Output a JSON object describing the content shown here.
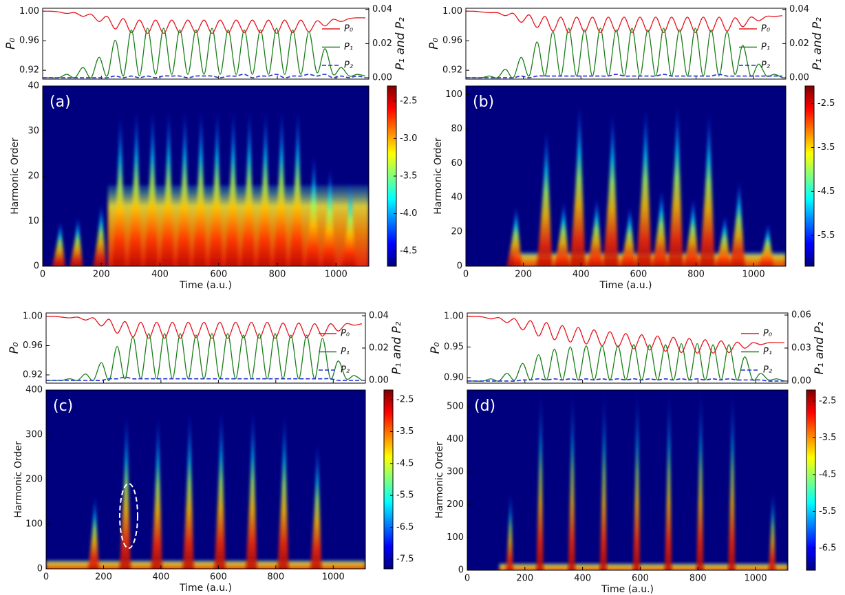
{
  "chart_data": [
    {
      "type": "line",
      "ylabel": "P₀",
      "y2label": "P₁ and P₂",
      "xlim": [
        0,
        1112
      ],
      "xticks": [
        0,
        200,
        400,
        600,
        800,
        1000
      ],
      "ylim": [
        0.908,
        1.004
      ],
      "yticks": [
        0.92,
        0.96,
        {
          "value": 1,
          "label": "1.00"
        }
      ],
      "y2lim": [
        -0.0008,
        0.0407
      ],
      "y2ticks": [
        {
          "value": 0,
          "label": "0.00"
        },
        0.02,
        0.04
      ],
      "legend": "upper right",
      "x": [
        0,
        27.5,
        55,
        82.5,
        110,
        137.5,
        165,
        192.5,
        220,
        247.5,
        275,
        302.5,
        330,
        357.5,
        385,
        412.5,
        440,
        467.5,
        495,
        522.5,
        550,
        577.5,
        605,
        632.5,
        660,
        687.5,
        715,
        742.5,
        770,
        797.5,
        825,
        852.5,
        880,
        907.5,
        935,
        962.5,
        990,
        1017.5,
        1045,
        1072.5,
        1100
      ],
      "series": [
        {
          "name": "P₀",
          "color": "#e8141c",
          "values": [
            1.0,
            1.0,
            0.999,
            0.997,
            0.998,
            0.993,
            0.996,
            0.986,
            0.993,
            0.976,
            0.99,
            0.971,
            0.988,
            0.97,
            0.988,
            0.97,
            0.988,
            0.971,
            0.988,
            0.971,
            0.988,
            0.97,
            0.988,
            0.971,
            0.988,
            0.971,
            0.988,
            0.971,
            0.988,
            0.97,
            0.988,
            0.971,
            0.988,
            0.972,
            0.987,
            0.98,
            0.989,
            0.986,
            0.99,
            0.991,
            0.991
          ]
        },
        {
          "name": "P₁",
          "color": "#1a7f1a",
          "axis": "y2",
          "values": [
            0,
            0,
            0,
            0.002,
            0,
            0.006,
            0,
            0.012,
            0.001,
            0.022,
            0.001,
            0.028,
            0.001,
            0.029,
            0.002,
            0.029,
            0.002,
            0.028,
            0.002,
            0.028,
            0.002,
            0.029,
            0.002,
            0.028,
            0.002,
            0.028,
            0.002,
            0.028,
            0.002,
            0.029,
            0.002,
            0.028,
            0.002,
            0.027,
            0.003,
            0.017,
            0.002,
            0.006,
            0.001,
            0.002,
            0.001
          ]
        },
        {
          "name": "P₂",
          "color": "#1f2fd8",
          "axis": "y2",
          "dash": true,
          "values": [
            0,
            0,
            0,
            0,
            0,
            0,
            0,
            0,
            0,
            0.001,
            0,
            0.001,
            0,
            0.001,
            0,
            0.001,
            0.001,
            0.001,
            0,
            0.001,
            0.001,
            0.001,
            0,
            0.001,
            0.001,
            0.002,
            0,
            0.001,
            0.001,
            0.002,
            0,
            0.001,
            0.001,
            0.002,
            0.001,
            0.002,
            0,
            0.001,
            0,
            0.001,
            0
          ]
        }
      ]
    },
    {
      "type": "heatmap",
      "label": "(a)",
      "xlabel": "Time (a.u.)",
      "ylabel": "Harmonic Order",
      "xlim": [
        0,
        1112
      ],
      "xticks": [
        0,
        200,
        400,
        600,
        800,
        1000
      ],
      "ylim": [
        0,
        40
      ],
      "yticks": [
        0,
        10,
        20,
        30,
        40
      ],
      "colormap": "jet",
      "clim": [
        -4.7,
        -2.3
      ],
      "cticks": [
        -2.5,
        {
          "value": -3,
          "label": "-3.0"
        },
        -3.5,
        {
          "value": -4,
          "label": "-4.0"
        },
        -4.5
      ],
      "bursts": {
        "x": [
          60,
          120,
          200,
          265,
          320,
          375,
          430,
          485,
          540,
          595,
          650,
          705,
          760,
          815,
          870,
          925,
          980,
          1050
        ],
        "values": [
          10,
          11,
          14,
          34,
          35,
          35,
          35,
          35,
          35,
          35,
          35,
          35,
          35,
          35,
          35,
          25,
          22,
          19
        ]
      }
    },
    {
      "type": "line",
      "ylabel": "P₀",
      "y2label": "P₁ and P₂",
      "xlim": [
        0,
        1112
      ],
      "xticks": [
        0,
        200,
        400,
        600,
        800,
        1000
      ],
      "ylim": [
        0.908,
        1.004
      ],
      "yticks": [
        0.92,
        0.96,
        {
          "value": 1,
          "label": "1.00"
        }
      ],
      "y2lim": [
        -0.0008,
        0.0407
      ],
      "y2ticks": [
        {
          "value": 0,
          "label": "0.00"
        },
        0.02,
        0.04
      ],
      "legend": "upper right",
      "x": [
        0,
        27.5,
        55,
        82.5,
        110,
        137.5,
        165,
        192.5,
        220,
        247.5,
        275,
        302.5,
        330,
        357.5,
        385,
        412.5,
        440,
        467.5,
        495,
        522.5,
        550,
        577.5,
        605,
        632.5,
        660,
        687.5,
        715,
        742.5,
        770,
        797.5,
        825,
        852.5,
        880,
        907.5,
        935,
        962.5,
        990,
        1017.5,
        1045,
        1072.5,
        1100
      ],
      "series": [
        {
          "name": "P₀",
          "color": "#e8141c",
          "values": [
            1.0,
            1.0,
            0.999,
            0.998,
            0.998,
            0.994,
            0.997,
            0.985,
            0.995,
            0.978,
            0.993,
            0.973,
            0.992,
            0.971,
            0.992,
            0.972,
            0.992,
            0.971,
            0.992,
            0.972,
            0.992,
            0.971,
            0.992,
            0.972,
            0.992,
            0.971,
            0.992,
            0.972,
            0.992,
            0.971,
            0.992,
            0.972,
            0.992,
            0.973,
            0.991,
            0.979,
            0.992,
            0.987,
            0.993,
            0.993,
            0.994
          ]
        },
        {
          "name": "P₁",
          "color": "#1a7f1a",
          "axis": "y2",
          "values": [
            0,
            0,
            0,
            0.001,
            0,
            0.005,
            0,
            0.012,
            0.001,
            0.021,
            0.001,
            0.027,
            0.001,
            0.029,
            0.001,
            0.028,
            0.001,
            0.029,
            0.001,
            0.028,
            0.001,
            0.029,
            0.001,
            0.028,
            0.001,
            0.029,
            0.001,
            0.028,
            0.001,
            0.029,
            0.001,
            0.028,
            0.001,
            0.027,
            0.002,
            0.019,
            0.001,
            0.008,
            0.001,
            0.002,
            0
          ]
        },
        {
          "name": "P₂",
          "color": "#1f2fd8",
          "axis": "y2",
          "dash": true,
          "values": [
            0,
            0,
            0,
            0,
            0,
            0,
            0,
            0.001,
            0,
            0.001,
            0.001,
            0.001,
            0.001,
            0.001,
            0.001,
            0.001,
            0.001,
            0.001,
            0.001,
            0.002,
            0.001,
            0.001,
            0.001,
            0.001,
            0.001,
            0.002,
            0.001,
            0.001,
            0.001,
            0.001,
            0.001,
            0.001,
            0.002,
            0.001,
            0.001,
            0.001,
            0.001,
            0.001,
            0.001,
            0.001,
            0.001
          ]
        }
      ]
    },
    {
      "type": "heatmap",
      "label": "(b)",
      "xlabel": "Time (a.u.)",
      "ylabel": "Harmonic Order",
      "xlim": [
        0,
        1112
      ],
      "xticks": [
        0,
        200,
        400,
        600,
        800,
        1000
      ],
      "ylim": [
        0,
        105
      ],
      "yticks": [
        0,
        20,
        40,
        60,
        80,
        100
      ],
      "colormap": "jet",
      "clim": [
        -6.2,
        -2.1
      ],
      "cticks": [
        -2.5,
        -3.5,
        -4.5,
        -5.5
      ],
      "bursts": {
        "x": [
          175,
          280,
          340,
          395,
          455,
          510,
          570,
          625,
          680,
          735,
          790,
          845,
          900,
          950,
          1050
        ],
        "values": [
          35,
          80,
          38,
          95,
          40,
          90,
          35,
          93,
          45,
          95,
          40,
          90,
          30,
          50,
          25
        ]
      }
    },
    {
      "type": "line",
      "ylabel": "P₀",
      "y2label": "P₁ and P₂",
      "xlim": [
        0,
        1112
      ],
      "xticks": [
        0,
        200,
        400,
        600,
        800,
        1000
      ],
      "ylim": [
        0.9087,
        1.0047
      ],
      "yticks": [
        0.92,
        0.96,
        {
          "value": 1,
          "label": "1.00"
        }
      ],
      "y2lim": [
        -0.0017,
        0.0417
      ],
      "y2ticks": [
        {
          "value": 0,
          "label": "0.00"
        },
        0.02,
        0.04
      ],
      "legend": "upper right",
      "x": [
        0,
        27.5,
        55,
        82.5,
        110,
        137.5,
        165,
        192.5,
        220,
        247.5,
        275,
        302.5,
        330,
        357.5,
        385,
        412.5,
        440,
        467.5,
        495,
        522.5,
        550,
        577.5,
        605,
        632.5,
        660,
        687.5,
        715,
        742.5,
        770,
        797.5,
        825,
        852.5,
        880,
        907.5,
        935,
        962.5,
        990,
        1017.5,
        1045,
        1072.5,
        1100
      ],
      "series": [
        {
          "name": "P₀",
          "color": "#e8141c",
          "values": [
            1.0,
            1.0,
            0.999,
            0.998,
            0.999,
            0.995,
            0.998,
            0.987,
            0.996,
            0.977,
            0.993,
            0.972,
            0.992,
            0.97,
            0.992,
            0.97,
            0.992,
            0.97,
            0.992,
            0.971,
            0.992,
            0.97,
            0.992,
            0.97,
            0.992,
            0.971,
            0.992,
            0.97,
            0.992,
            0.97,
            0.991,
            0.971,
            0.991,
            0.971,
            0.99,
            0.973,
            0.99,
            0.98,
            0.99,
            0.988,
            0.99
          ]
        },
        {
          "name": "P₁",
          "color": "#1a7f1a",
          "axis": "y2",
          "values": [
            0,
            0,
            0,
            0.001,
            0,
            0.004,
            0,
            0.011,
            0,
            0.021,
            0.001,
            0.027,
            0.001,
            0.029,
            0.001,
            0.029,
            0.001,
            0.029,
            0.001,
            0.028,
            0.001,
            0.029,
            0.001,
            0.029,
            0.001,
            0.028,
            0.001,
            0.029,
            0.001,
            0.029,
            0.001,
            0.028,
            0.001,
            0.028,
            0.001,
            0.026,
            0.001,
            0.012,
            0.001,
            0.003,
            0
          ]
        },
        {
          "name": "P₂",
          "color": "#1f2fd8",
          "axis": "y2",
          "dash": true,
          "values": [
            0,
            0,
            0,
            0,
            0,
            0,
            0,
            0,
            0.001,
            0.001,
            0.002,
            0.001,
            0.001,
            0.001,
            0.001,
            0.001,
            0.001,
            0.001,
            0.001,
            0.001,
            0.001,
            0.001,
            0.001,
            0.001,
            0.001,
            0.001,
            0.001,
            0.001,
            0.001,
            0.001,
            0.001,
            0.001,
            0.001,
            0.001,
            0.001,
            0.001,
            0.001,
            0,
            0,
            0,
            0
          ]
        }
      ]
    },
    {
      "type": "heatmap",
      "label": "(c)",
      "xlabel": "Time (a.u.)",
      "ylabel": "Harmonic Order",
      "xlim": [
        0,
        1112
      ],
      "xticks": [
        0,
        200,
        400,
        600,
        800,
        1000
      ],
      "ylim": [
        0,
        400
      ],
      "yticks": [
        0,
        100,
        200,
        300,
        400
      ],
      "colormap": "jet",
      "clim": [
        -7.8,
        -2.2
      ],
      "cticks": [
        -2.5,
        -3.5,
        -4.5,
        -5.5,
        -6.5,
        -7.5
      ],
      "bursts": {
        "x": [
          170,
          280,
          390,
          500,
          610,
          720,
          830,
          945
        ],
        "values": [
          165,
          350,
          345,
          355,
          360,
          360,
          350,
          285
        ]
      }
    },
    {
      "type": "line",
      "ylabel": "P₀",
      "y2label": "P₁ and P₂",
      "xlim": [
        0,
        1112
      ],
      "xticks": [
        0,
        200,
        400,
        600,
        800,
        1000
      ],
      "ylim": [
        0.891,
        1.0056
      ],
      "yticks": [
        {
          "value": 0.9,
          "label": "0.90"
        },
        0.95,
        {
          "value": 1,
          "label": "1.00"
        }
      ],
      "y2lim": [
        -0.0019,
        0.0619
      ],
      "y2ticks": [
        {
          "value": 0,
          "label": "0.00"
        },
        0.03,
        0.06
      ],
      "legend": "upper right",
      "x": [
        0,
        27.5,
        55,
        82.5,
        110,
        137.5,
        165,
        192.5,
        220,
        247.5,
        275,
        302.5,
        330,
        357.5,
        385,
        412.5,
        440,
        467.5,
        495,
        522.5,
        550,
        577.5,
        605,
        632.5,
        660,
        687.5,
        715,
        742.5,
        770,
        797.5,
        825,
        852.5,
        880,
        907.5,
        935,
        962.5,
        990,
        1017.5,
        1045,
        1072.5,
        1100
      ],
      "series": [
        {
          "name": "P₀",
          "color": "#e8141c",
          "values": [
            1.0,
            1.0,
            0.999,
            0.996,
            0.998,
            0.99,
            0.996,
            0.978,
            0.993,
            0.968,
            0.99,
            0.962,
            0.985,
            0.958,
            0.982,
            0.955,
            0.978,
            0.952,
            0.975,
            0.95,
            0.972,
            0.947,
            0.97,
            0.945,
            0.968,
            0.943,
            0.966,
            0.941,
            0.964,
            0.94,
            0.962,
            0.94,
            0.96,
            0.941,
            0.958,
            0.948,
            0.957,
            0.954,
            0.957,
            0.957,
            0.957
          ]
        },
        {
          "name": "P₁",
          "color": "#1a7f1a",
          "axis": "y2",
          "values": [
            0,
            0,
            0,
            0.002,
            0,
            0.007,
            0.001,
            0.016,
            0.001,
            0.024,
            0.001,
            0.029,
            0.001,
            0.031,
            0.001,
            0.032,
            0.001,
            0.032,
            0.001,
            0.032,
            0.001,
            0.033,
            0.001,
            0.033,
            0.001,
            0.033,
            0.001,
            0.034,
            0.001,
            0.034,
            0.001,
            0.033,
            0.001,
            0.033,
            0.001,
            0.022,
            0.001,
            0.007,
            0.001,
            0.002,
            0
          ]
        },
        {
          "name": "P₂",
          "color": "#1f2fd8",
          "axis": "y2",
          "dash": true,
          "values": [
            0,
            0,
            0,
            0,
            0,
            0,
            0,
            0.001,
            0.001,
            0.002,
            0.001,
            0.002,
            0.001,
            0.002,
            0.001,
            0.002,
            0.001,
            0.002,
            0.001,
            0.002,
            0.001,
            0.002,
            0.001,
            0.002,
            0.001,
            0.002,
            0.001,
            0.002,
            0.001,
            0.002,
            0.001,
            0.002,
            0.001,
            0.002,
            0.001,
            0.001,
            0.001,
            0.001,
            0,
            0,
            0
          ]
        }
      ]
    },
    {
      "type": "heatmap",
      "label": "(d)",
      "xlabel": "Time (a.u.)",
      "ylabel": "Harmonic Order",
      "xlim": [
        0,
        1112
      ],
      "xticks": [
        0,
        200,
        400,
        600,
        800,
        1000
      ],
      "ylim": [
        0,
        550
      ],
      "yticks": [
        0,
        100,
        200,
        300,
        400,
        500
      ],
      "colormap": "jet",
      "clim": [
        -7.1,
        -2.2
      ],
      "cticks": [
        -2.5,
        -3.5,
        -4.5,
        -5.5,
        -6.5
      ],
      "bursts": {
        "x": [
          150,
          255,
          365,
          475,
          590,
          700,
          810,
          920,
          1060
        ],
        "values": [
          240,
          550,
          550,
          545,
          550,
          550,
          550,
          550,
          245
        ]
      }
    }
  ]
}
